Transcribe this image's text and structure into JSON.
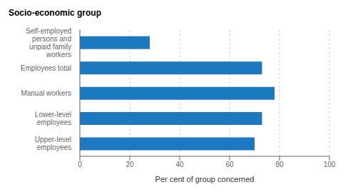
{
  "chart_data": {
    "type": "bar",
    "title": "Socio-economic group",
    "orientation": "horizontal",
    "categories": [
      "Upper-level\nemployees",
      "Lower-level\nemployees",
      "Manual workers",
      "Employees total",
      "Self-employed\npersons and\nunpaid family\nworkers"
    ],
    "values": [
      70,
      73,
      78,
      73,
      28
    ],
    "color": "#1b7abf",
    "xlabel": "Per cent of group concerned",
    "xlim": [
      0,
      100
    ],
    "xticks": [
      0,
      20,
      40,
      60,
      80,
      100
    ],
    "grid": true
  }
}
